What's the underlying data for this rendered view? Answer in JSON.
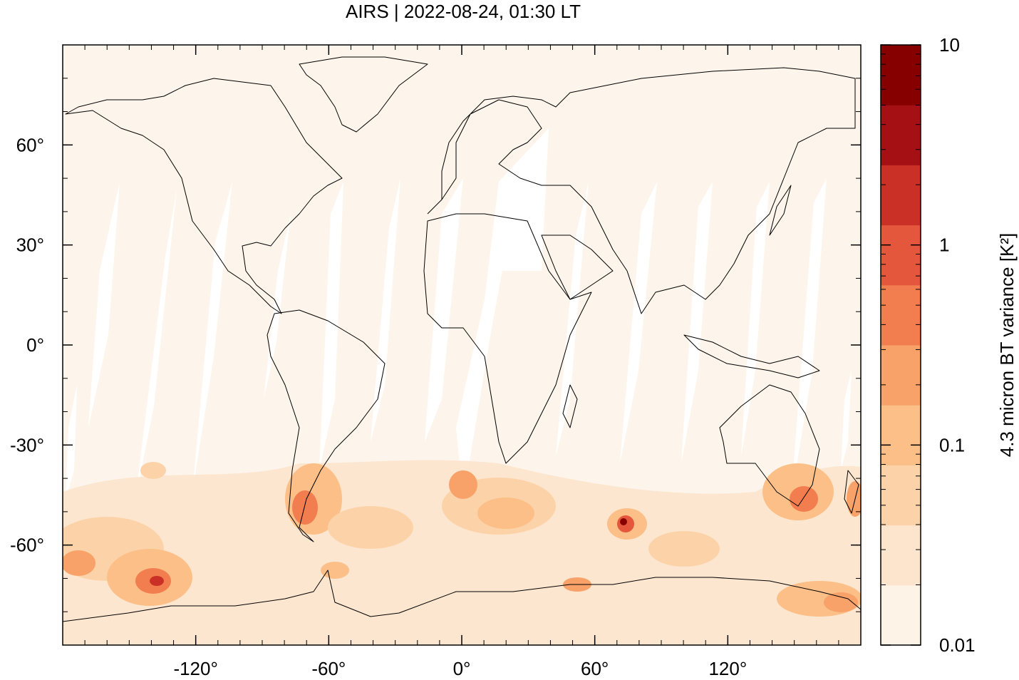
{
  "title": "AIRS | 2022-08-24, 01:30 LT",
  "map": {
    "lon_range": [
      -180,
      180
    ],
    "lat_range": [
      -90,
      90
    ],
    "background_color": "#fdf5eb",
    "gap_color": "#ffffff",
    "coastline_color": "#000000",
    "x_ticks": [
      {
        "value": -120,
        "label": "-120°"
      },
      {
        "value": -60,
        "label": "-60°"
      },
      {
        "value": 0,
        "label": "0°"
      },
      {
        "value": 60,
        "label": "60°"
      },
      {
        "value": 120,
        "label": "120°"
      }
    ],
    "y_ticks": [
      {
        "value": 60,
        "label": "60°"
      },
      {
        "value": 30,
        "label": "30°"
      },
      {
        "value": 0,
        "label": "0°"
      },
      {
        "value": -30,
        "label": "-30°"
      },
      {
        "value": -60,
        "label": "-60°"
      }
    ]
  },
  "colorbar": {
    "label": "4.3 micron BT variance [K²]",
    "scale": "log",
    "range": [
      0.01,
      10
    ],
    "tick_labels": [
      {
        "value": 10,
        "label": "10"
      },
      {
        "value": 1,
        "label": "1"
      },
      {
        "value": 0.1,
        "label": "0.1"
      },
      {
        "value": 0.01,
        "label": "0.01"
      }
    ],
    "colors": [
      "#fef3e7",
      "#fde4cc",
      "#fcd3a9",
      "#fbbf87",
      "#f8a168",
      "#f27e4f",
      "#e4573c",
      "#ca3025",
      "#a41013",
      "#860000"
    ]
  }
}
